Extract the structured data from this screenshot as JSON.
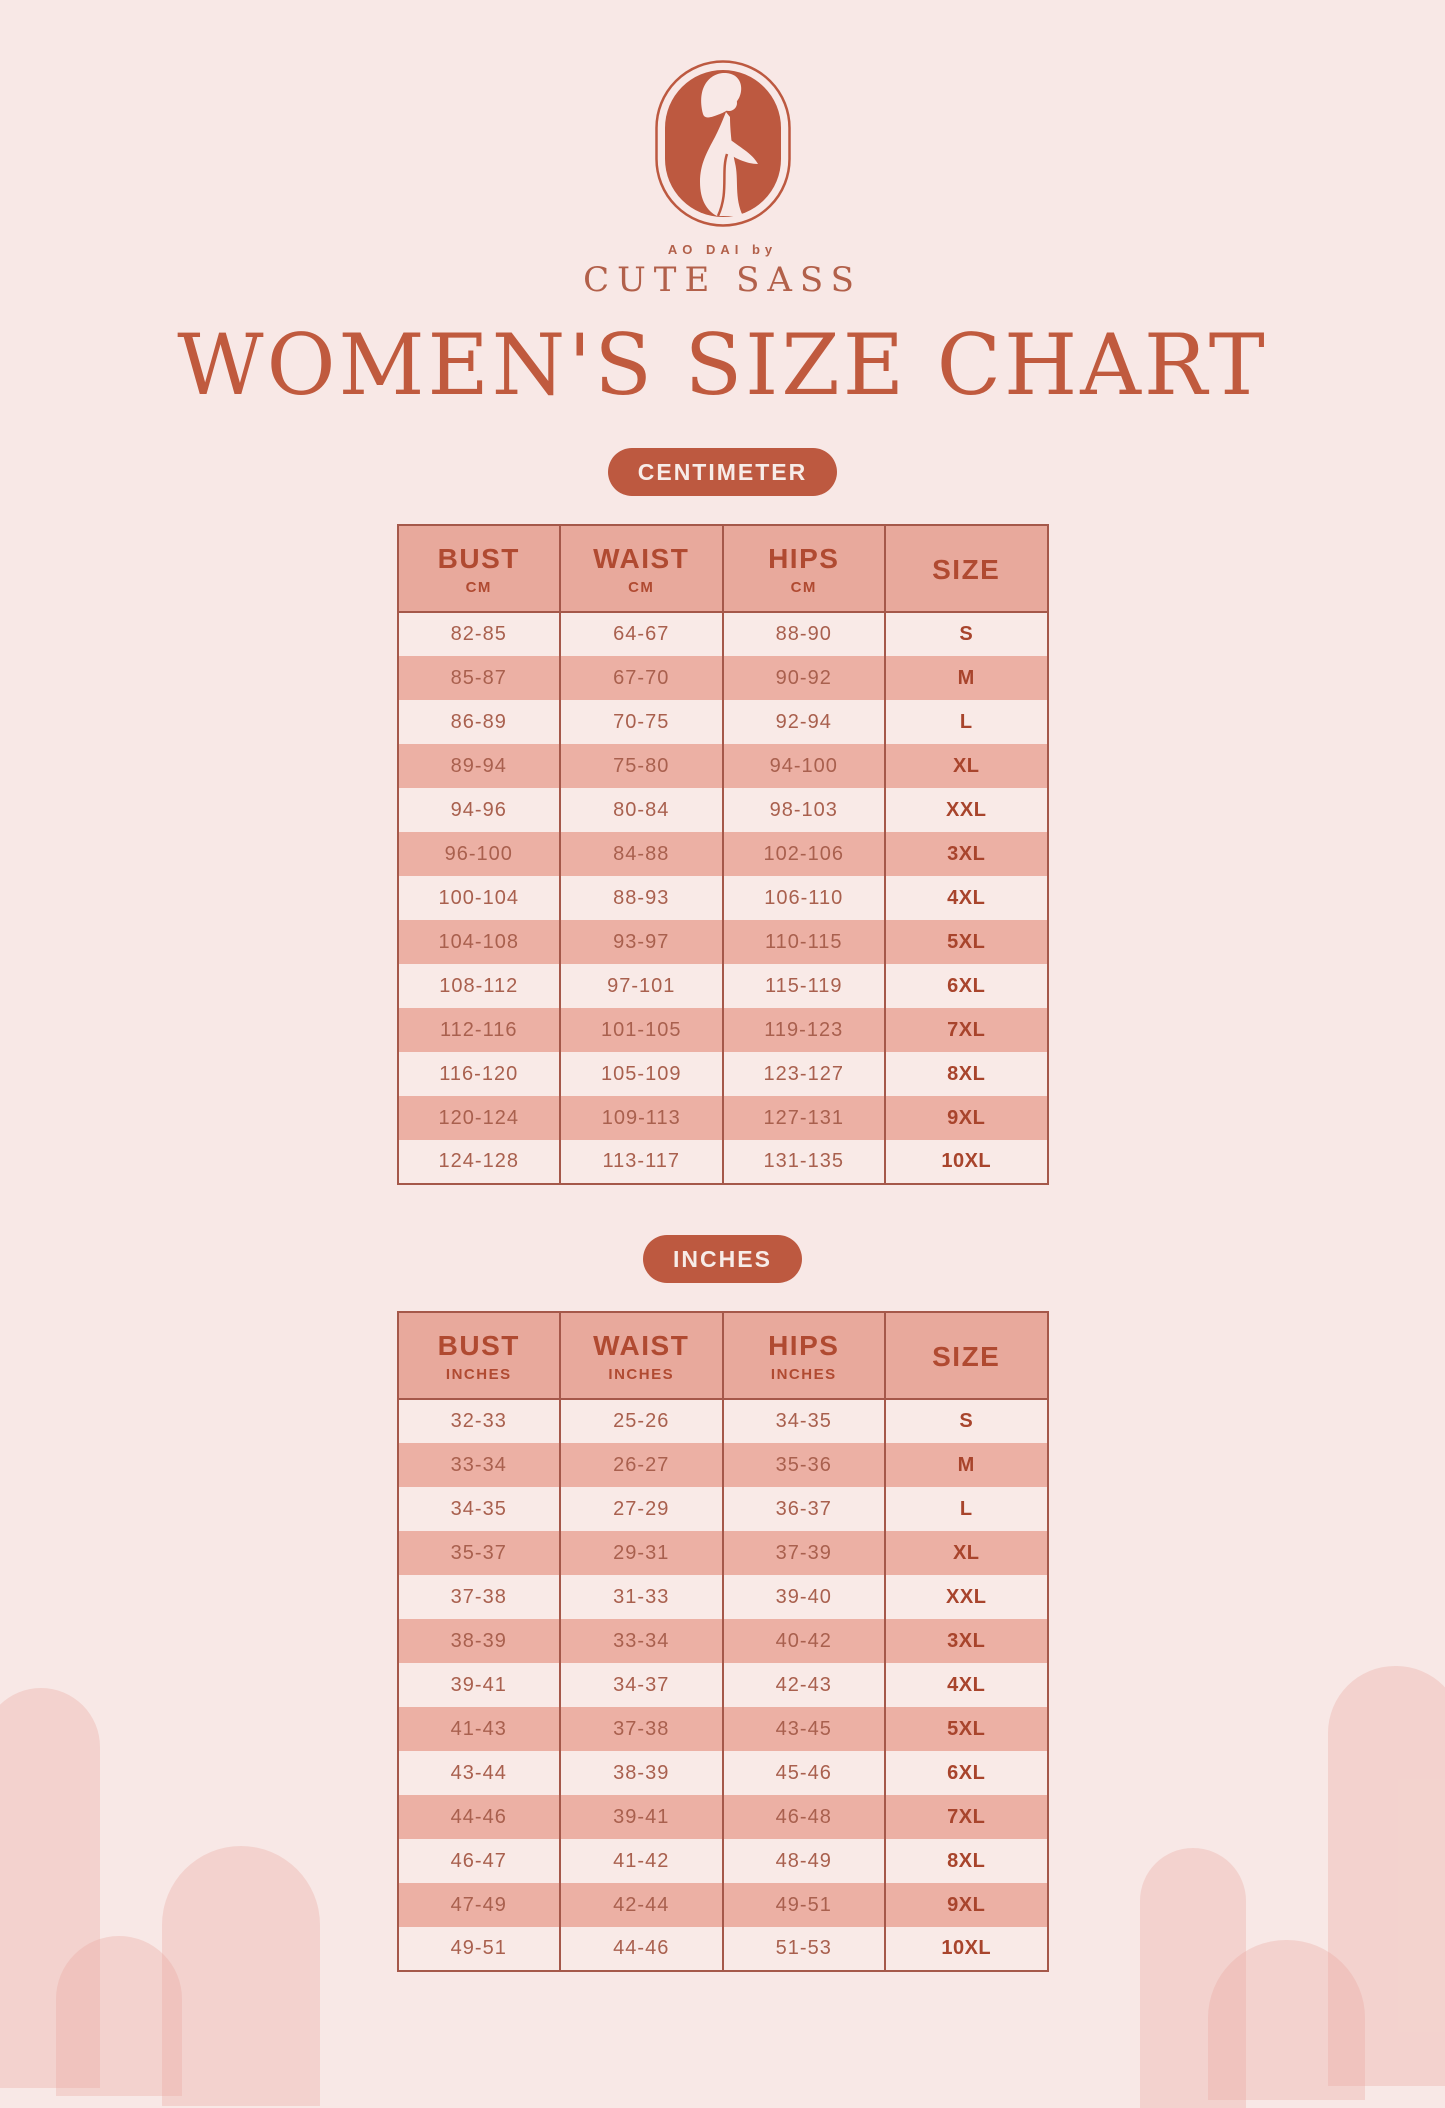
{
  "page": {
    "title": "WOMEN'S SIZE CHART"
  },
  "brand": {
    "tagline": "AO DAI by",
    "name": "CUTE SASS",
    "logo_icon": "woman-in-ao-dai"
  },
  "colors": {
    "background": "#f8e8e6",
    "terracotta": "#bd5940",
    "table_header_bg": "#e8a99c",
    "row_dark": "#ecb0a4",
    "row_light": "#f9eae7",
    "table_line": "#a5584a",
    "header_text": "#b04a31",
    "data_text": "#a9604e",
    "size_text": "#a8442c",
    "pill_text": "#f7ece8"
  },
  "size_tables": [
    {
      "badge_label": "CENTIMETER",
      "columns": [
        {
          "label": "BUST",
          "sub": "CM"
        },
        {
          "label": "WAIST",
          "sub": "CM"
        },
        {
          "label": "HIPS",
          "sub": "CM"
        },
        {
          "label": "SIZE",
          "sub": ""
        }
      ],
      "rows": [
        [
          "82-85",
          "64-67",
          "88-90",
          "S"
        ],
        [
          "85-87",
          "67-70",
          "90-92",
          "M"
        ],
        [
          "86-89",
          "70-75",
          "92-94",
          "L"
        ],
        [
          "89-94",
          "75-80",
          "94-100",
          "XL"
        ],
        [
          "94-96",
          "80-84",
          "98-103",
          "XXL"
        ],
        [
          "96-100",
          "84-88",
          "102-106",
          "3XL"
        ],
        [
          "100-104",
          "88-93",
          "106-110",
          "4XL"
        ],
        [
          "104-108",
          "93-97",
          "110-115",
          "5XL"
        ],
        [
          "108-112",
          "97-101",
          "115-119",
          "6XL"
        ],
        [
          "112-116",
          "101-105",
          "119-123",
          "7XL"
        ],
        [
          "116-120",
          "105-109",
          "123-127",
          "8XL"
        ],
        [
          "120-124",
          "109-113",
          "127-131",
          "9XL"
        ],
        [
          "124-128",
          "113-117",
          "131-135",
          "10XL"
        ]
      ]
    },
    {
      "badge_label": "INCHES",
      "columns": [
        {
          "label": "BUST",
          "sub": "INCHES"
        },
        {
          "label": "WAIST",
          "sub": "INCHES"
        },
        {
          "label": "HIPS",
          "sub": "INCHES"
        },
        {
          "label": "SIZE",
          "sub": ""
        }
      ],
      "rows": [
        [
          "32-33",
          "25-26",
          "34-35",
          "S"
        ],
        [
          "33-34",
          "26-27",
          "35-36",
          "M"
        ],
        [
          "34-35",
          "27-29",
          "36-37",
          "L"
        ],
        [
          "35-37",
          "29-31",
          "37-39",
          "XL"
        ],
        [
          "37-38",
          "31-33",
          "39-40",
          "XXL"
        ],
        [
          "38-39",
          "33-34",
          "40-42",
          "3XL"
        ],
        [
          "39-41",
          "34-37",
          "42-43",
          "4XL"
        ],
        [
          "41-43",
          "37-38",
          "43-45",
          "5XL"
        ],
        [
          "43-44",
          "38-39",
          "45-46",
          "6XL"
        ],
        [
          "44-46",
          "39-41",
          "46-48",
          "7XL"
        ],
        [
          "46-47",
          "41-42",
          "48-49",
          "8XL"
        ],
        [
          "47-49",
          "42-44",
          "49-51",
          "9XL"
        ],
        [
          "49-51",
          "44-46",
          "51-53",
          "10XL"
        ]
      ]
    }
  ]
}
